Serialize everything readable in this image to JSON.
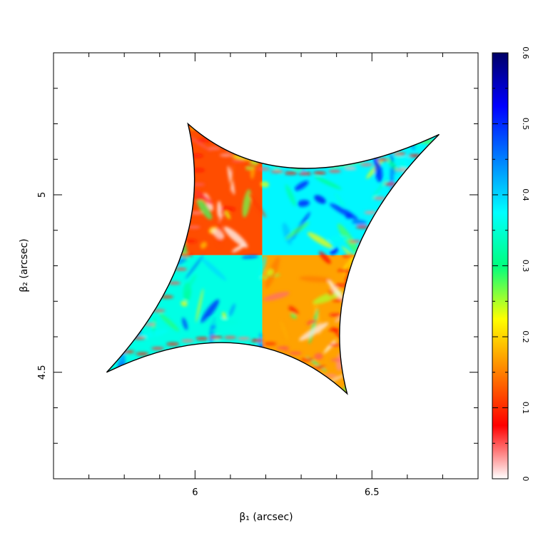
{
  "chart_data": {
    "type": "heatmap",
    "xlabel": "β₁ (arcsec)",
    "ylabel": "β₂ (arcsec)",
    "xlim": [
      5.6,
      6.8
    ],
    "ylim": [
      4.2,
      5.4
    ],
    "xticks": [
      {
        "value": 6,
        "label": "6"
      },
      {
        "value": 6.5,
        "label": "6.5"
      }
    ],
    "yticks": [
      {
        "value": 4.5,
        "label": "4.5"
      },
      {
        "value": 5,
        "label": "5"
      }
    ],
    "colorbar": {
      "range": [
        0,
        0.6
      ],
      "ticks": [
        {
          "value": 0,
          "label": "0"
        },
        {
          "value": 0.1,
          "label": "0.1"
        },
        {
          "value": 0.2,
          "label": "0.2"
        },
        {
          "value": 0.3,
          "label": "0.3"
        },
        {
          "value": 0.4,
          "label": "0.4"
        },
        {
          "value": 0.5,
          "label": "0.5"
        },
        {
          "value": 0.6,
          "label": "0.6"
        }
      ],
      "colormap": [
        "#ffffff",
        "#ff0000",
        "#ff8000",
        "#ffff00",
        "#00ff7f",
        "#00ffff",
        "#0080ff",
        "#0000ff",
        "#000066"
      ]
    },
    "caustic": {
      "center": [
        6.19,
        4.83
      ],
      "cusps": [
        {
          "name": "upper-right",
          "x": 6.69,
          "y": 5.17
        },
        {
          "name": "upper-left",
          "x": 5.98,
          "y": 5.2
        },
        {
          "name": "lower-left",
          "x": 5.75,
          "y": 4.5
        },
        {
          "name": "lower-right",
          "x": 6.43,
          "y": 4.44
        }
      ],
      "quadrant_values": {
        "upper-left": 0.12,
        "upper-right": 0.38,
        "lower-left": 0.36,
        "lower-right": 0.17
      }
    },
    "grid": false,
    "legend": "none"
  }
}
